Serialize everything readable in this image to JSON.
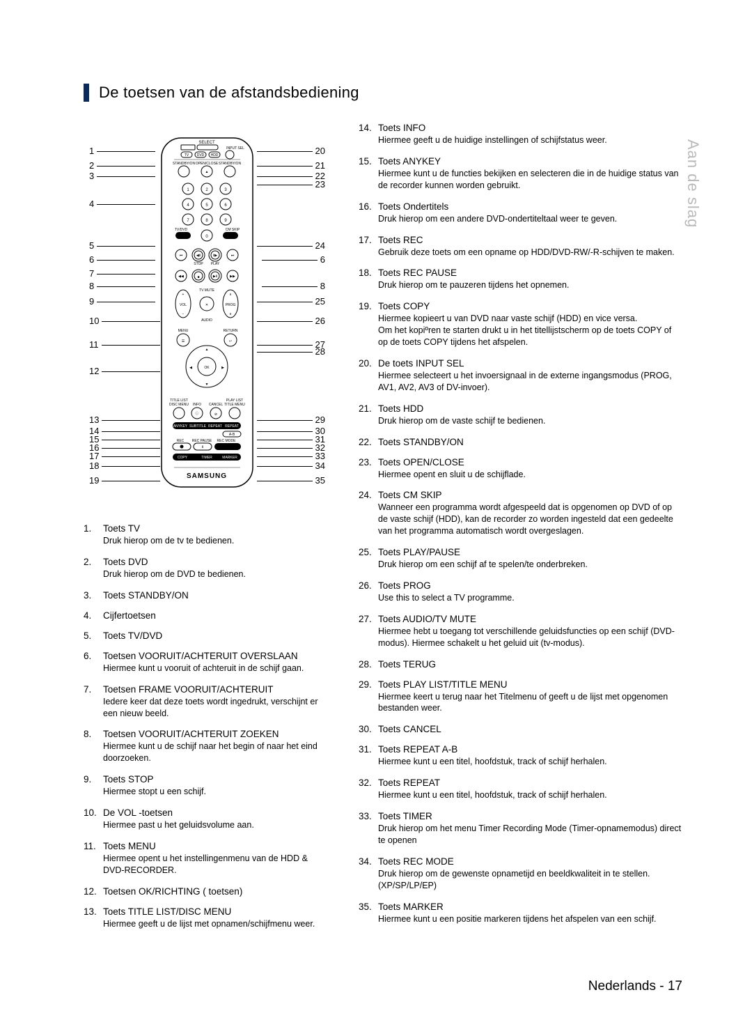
{
  "heading": "De toetsen van de afstandsbediening",
  "sideTab": "Aan de slag",
  "footer_lang": "Nederlands - ",
  "footer_page": "17",
  "remote": {
    "left_nums": [
      "1",
      "2",
      "3",
      "4",
      "5",
      "6",
      "7",
      "8",
      "9",
      "10",
      "11",
      "12",
      "13",
      "14",
      "15",
      "16",
      "17",
      "18",
      "19"
    ],
    "right_nums": [
      "20",
      "21",
      "22",
      "23",
      "24",
      "6",
      "8",
      "25",
      "26",
      "27",
      "28",
      "29",
      "30",
      "31",
      "32",
      "33",
      "34",
      "35"
    ],
    "left_y": [
      14,
      35,
      50,
      90,
      150,
      170,
      190,
      208,
      230,
      258,
      292,
      330,
      400,
      416,
      428,
      440,
      452,
      466,
      487
    ],
    "right_y": [
      14,
      35,
      50,
      62,
      150,
      170,
      208,
      230,
      258,
      292,
      302,
      400,
      416,
      428,
      440,
      452,
      466,
      487
    ],
    "brand": "SAMSUNG",
    "labels": {
      "select": "SELECT",
      "input_sel": "INPUT SEL",
      "tv": "TV",
      "dvd": "DVD",
      "hdd": "HDD",
      "standby": "STANDBY/ON",
      "openclose": "OPEN/CLOSE",
      "tvdvd": "TV/DVD",
      "cmskip": "CM SKIP",
      "stop": "STOP",
      "play": "PLAY",
      "tvmute": "TV MUTE",
      "prog": "PROG",
      "audio": "AUDIO",
      "menu": "MENU",
      "return": "RETURN",
      "ok": "OK",
      "titlelist": "TITLE LIST",
      "discmenu": "DISC MENU",
      "info": "INFO",
      "cancel": "CANCEL",
      "playlist": "PLAY LIST",
      "titlemenu": "TITLE MENU",
      "anykey": "ANYKEY",
      "subtitle": "SUBTITLE",
      "repeat_t": "REPEAT",
      "repeat_b": "REPEAT",
      "ab": "A-B",
      "rec": "REC",
      "recpause": "REC PAUSE",
      "recmode": "REC MODE",
      "copy": "COPY",
      "timer": "TIMER",
      "marker": "MARKER"
    }
  },
  "left_items": [
    {
      "n": "1.",
      "t": "Toets TV",
      "d": "Druk hierop om de tv te bedienen."
    },
    {
      "n": "2.",
      "t": "Toets DVD",
      "d": "Druk hierop om de DVD te bedienen."
    },
    {
      "n": "3.",
      "t": "Toets STANDBY/ON"
    },
    {
      "n": "4.",
      "t": "Cijfertoetsen"
    },
    {
      "n": "5.",
      "t": "Toets TV/DVD"
    },
    {
      "n": "6.",
      "t": "Toetsen VOORUIT/ACHTERUIT OVERSLAAN",
      "d": "Hiermee kunt u vooruit of achteruit in de schijf gaan."
    },
    {
      "n": "7.",
      "t": "Toetsen FRAME VOORUIT/ACHTERUIT",
      "d": "Iedere keer dat deze toets wordt ingedrukt, verschijnt er een nieuw beeld."
    },
    {
      "n": "8.",
      "t": "Toetsen VOORUIT/ACHTERUIT ZOEKEN",
      "d": "Hiermee kunt u de schijf naar het begin of naar het eind doorzoeken."
    },
    {
      "n": "9.",
      "t": "Toets STOP",
      "d": "Hiermee stopt u een schijf."
    },
    {
      "n": "10.",
      "t": "De VOL -toetsen",
      "d": "Hiermee past u het geluidsvolume aan."
    },
    {
      "n": "11.",
      "t": "Toets MENU",
      "d": "Hiermee opent u het instellingenmenu van de HDD & DVD-RECORDER."
    },
    {
      "n": "12.",
      "t": "Toetsen OK/RICHTING  (               toetsen)"
    },
    {
      "n": "13.",
      "t": "Toets TITLE LIST/DISC MENU",
      "d": "Hiermee geeft u de lijst met opnamen/schijfmenu weer."
    }
  ],
  "right_items": [
    {
      "n": "14.",
      "t": "Toets INFO",
      "d": "Hiermee geeft u de huidige instellingen of schijfstatus weer."
    },
    {
      "n": "15.",
      "t": "Toets ANYKEY",
      "d": "Hiermee kunt u de functies bekijken en selecteren die in de huidige status van de recorder kunnen worden gebruikt."
    },
    {
      "n": "16.",
      "t": "Toets Ondertitels",
      "d": "Druk hierop om een andere DVD-ondertiteltaal weer te geven."
    },
    {
      "n": "17.",
      "t": "Toets REC",
      "d": "Gebruik deze toets om een opname op HDD/DVD-RW/-R-schijven te maken."
    },
    {
      "n": "18.",
      "t": "Toets REC PAUSE",
      "d": "Druk hierop om te pauzeren tijdens het opnemen."
    },
    {
      "n": "19.",
      "t": "Toets COPY",
      "d": "Hiermee kopieert u van DVD naar vaste schijf (HDD) en vice versa.\nOm het kopiºren te starten drukt u in het titellijstscherm op de toets COPY of op de toets COPY tijdens het afspelen."
    },
    {
      "n": "20.",
      "t": "De toets INPUT SEL",
      "d": "Hiermee selecteert u het invoersignaal in de externe ingangsmodus (PROG, AV1, AV2, AV3 of DV-invoer)."
    },
    {
      "n": "21.",
      "t": "Toets HDD",
      "d": "Druk hierop om de vaste schijf te bedienen."
    },
    {
      "n": "22.",
      "t": "Toets STANDBY/ON"
    },
    {
      "n": "23.",
      "t": "Toets OPEN/CLOSE",
      "d": "Hiermee opent en sluit u de schijflade."
    },
    {
      "n": "24.",
      "t": "Toets CM SKIP",
      "d": "Wanneer een programma wordt afgespeeld dat is opgenomen op DVD of op de vaste schijf (HDD), kan de recorder zo worden ingesteld dat een gedeelte van het programma automatisch wordt overgeslagen."
    },
    {
      "n": "25.",
      "t": "Toets PLAY/PAUSE",
      "d": "Druk hierop om een schijf af te spelen/te onderbreken."
    },
    {
      "n": "26.",
      "t": "Toets PROG",
      "d": "Use this to select a TV programme."
    },
    {
      "n": "27.",
      "t": "Toets AUDIO/TV MUTE",
      "d": "Hiermee hebt u toegang tot verschillende geluidsfuncties op een schijf (DVD-modus). Hiermee schakelt u het geluid uit (tv-modus)."
    },
    {
      "n": "28.",
      "t": "Toets TERUG"
    },
    {
      "n": "29.",
      "t": "Toets PLAY LIST/TITLE MENU",
      "d": "Hiermee keert u terug naar het Titelmenu of geeft u de lijst met opgenomen bestanden weer."
    },
    {
      "n": "30.",
      "t": "Toets CANCEL"
    },
    {
      "n": "31.",
      "t": "Toets REPEAT A-B",
      "d": "Hiermee kunt u een titel, hoofdstuk, track of schijf herhalen."
    },
    {
      "n": "32.",
      "t": "Toets REPEAT",
      "d": "Hiermee kunt u een titel, hoofdstuk, track of schijf herhalen."
    },
    {
      "n": "33.",
      "t": "Toets TIMER",
      "d": "Druk hierop om het menu Timer Recording Mode (Timer-opnamemodus) direct te openen"
    },
    {
      "n": "34.",
      "t": "Toets REC MODE",
      "d": "Druk hierop om de gewenste opnametijd en beeldkwaliteit in te stellen. (XP/SP/LP/EP)"
    },
    {
      "n": "35.",
      "t": "Toets MARKER",
      "d": "Hiermee kunt u een positie markeren tijdens het afspelen van een schijf."
    }
  ]
}
